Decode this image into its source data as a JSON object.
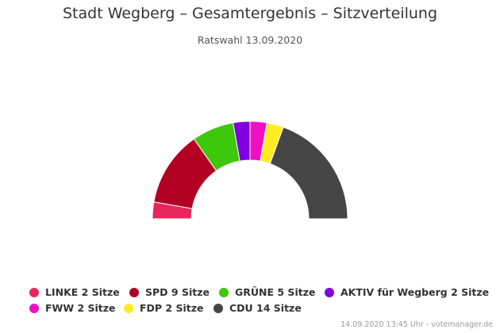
{
  "title": "Stadt Wegberg – Gesamtergebnis – Sitzverteilung",
  "subtitle": "Ratswahl 13.09.2020",
  "chart_data": {
    "type": "pie",
    "variant": "parliament-half-donut",
    "title": "Stadt Wegberg – Gesamtergebnis – Sitzverteilung",
    "subtitle": "Ratswahl 13.09.2020",
    "legend_position": "bottom",
    "series": [
      {
        "name": "LINKE",
        "value": 2,
        "label": "LINKE 2 Sitze",
        "color": "#e8265e"
      },
      {
        "name": "SPD",
        "value": 9,
        "label": "SPD 9 Sitze",
        "color": "#b20023"
      },
      {
        "name": "GRÜNE",
        "value": 5,
        "label": "GRÜNE 5 Sitze",
        "color": "#3ec80b"
      },
      {
        "name": "AKTIV für Wegberg",
        "value": 2,
        "label": "AKTIV für Wegberg 2 Sitze",
        "color": "#8000e0"
      },
      {
        "name": "FWW",
        "value": 2,
        "label": "FWW 2 Sitze",
        "color": "#f10fc3"
      },
      {
        "name": "FDP",
        "value": 2,
        "label": "FDP 2 Sitze",
        "color": "#ffec23"
      },
      {
        "name": "CDU",
        "value": 14,
        "label": "CDU 14 Sitze",
        "color": "#454545"
      }
    ]
  },
  "credits": "14.09.2020 13:45 Uhr - votemanager.de"
}
